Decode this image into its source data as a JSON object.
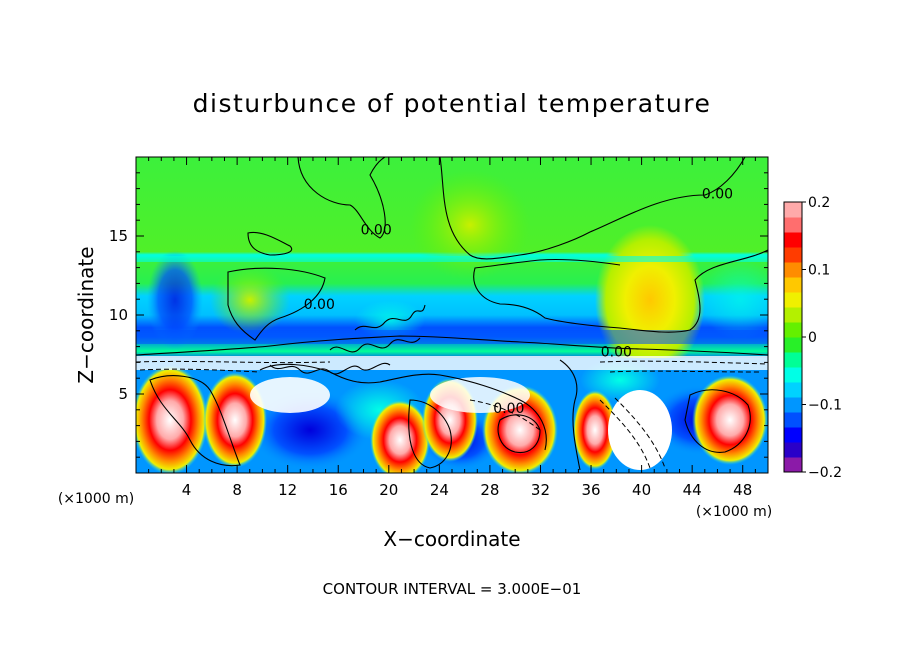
{
  "chart_data": {
    "type": "heatmap",
    "title": "disturbunce of potential temperature",
    "xlabel": "X−coordinate",
    "ylabel": "Z−coordinate",
    "x_units": "(×1000 m)",
    "z_units": "(×1000 m)",
    "xlim": [
      0,
      50
    ],
    "ylim": [
      0,
      20
    ],
    "x_ticks": [
      4,
      8,
      12,
      16,
      20,
      24,
      28,
      32,
      36,
      40,
      44,
      48
    ],
    "y_ticks": [
      5,
      10,
      15
    ],
    "colorbar": {
      "range": [
        -0.2,
        0.2
      ],
      "tick_values": [
        0.2,
        0.1,
        0,
        -0.1,
        -0.2
      ],
      "tick_labels": [
        "0.2",
        "0.1",
        "0",
        "−0.1",
        "−0.2"
      ],
      "colors": [
        "#8b1aa8",
        "#2a00c8",
        "#0000ff",
        "#0050ff",
        "#0096ff",
        "#00d2ff",
        "#00ffe6",
        "#00ff96",
        "#28f028",
        "#64f000",
        "#b4f000",
        "#f0f000",
        "#ffc800",
        "#ff8c00",
        "#ff3c00",
        "#ff0000",
        "#ff6e6e",
        "#ffaaaa"
      ]
    },
    "contour_labels": [
      {
        "text": "0.00",
        "x": 14.5,
        "z": 10.7
      },
      {
        "text": "0.00",
        "x": 38.0,
        "z": 7.7
      },
      {
        "text": "0.00",
        "x": 29.5,
        "z": 4.1
      },
      {
        "text": "0.00",
        "x": 46.0,
        "z": 17.7
      },
      {
        "text": "0.00",
        "x": 19.0,
        "z": 15.4
      }
    ],
    "footer": "CONTOUR INTERVAL = 3.000E−01"
  }
}
